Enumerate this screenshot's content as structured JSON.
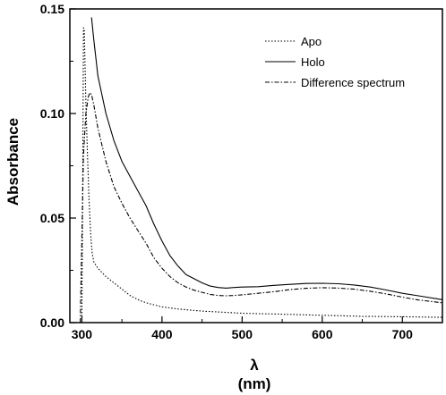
{
  "chart_data": {
    "type": "line",
    "title": "",
    "xlabel": "λ",
    "xlabel_unit": "(nm)",
    "ylabel": "Absorbance",
    "xlim": [
      285,
      750
    ],
    "ylim": [
      0,
      0.15
    ],
    "x_ticks": [
      300,
      400,
      500,
      600,
      700
    ],
    "y_ticks": [
      "0.00",
      "0.05",
      "0.10",
      "0.15"
    ],
    "grid": false,
    "legend_position": "top-right",
    "series": [
      {
        "name": "Apo",
        "style": "dotted",
        "color": "#000000",
        "points": [
          [
            300,
            0.0
          ],
          [
            301,
            0.06
          ],
          [
            302,
            0.141
          ],
          [
            303,
            0.14
          ],
          [
            305,
            0.105
          ],
          [
            307,
            0.08
          ],
          [
            309,
            0.058
          ],
          [
            311,
            0.042
          ],
          [
            313,
            0.033
          ],
          [
            315,
            0.029
          ],
          [
            320,
            0.026
          ],
          [
            330,
            0.022
          ],
          [
            340,
            0.019
          ],
          [
            350,
            0.016
          ],
          [
            360,
            0.013
          ],
          [
            370,
            0.011
          ],
          [
            380,
            0.0095
          ],
          [
            390,
            0.0085
          ],
          [
            400,
            0.0075
          ],
          [
            420,
            0.0065
          ],
          [
            450,
            0.0055
          ],
          [
            500,
            0.0045
          ],
          [
            550,
            0.004
          ],
          [
            600,
            0.0035
          ],
          [
            650,
            0.003
          ],
          [
            700,
            0.0028
          ],
          [
            750,
            0.0025
          ]
        ]
      },
      {
        "name": "Holo",
        "style": "solid",
        "color": "#000000",
        "points": [
          [
            312,
            0.146
          ],
          [
            315,
            0.135
          ],
          [
            320,
            0.118
          ],
          [
            330,
            0.1
          ],
          [
            340,
            0.087
          ],
          [
            350,
            0.077
          ],
          [
            360,
            0.07
          ],
          [
            370,
            0.063
          ],
          [
            380,
            0.056
          ],
          [
            390,
            0.047
          ],
          [
            400,
            0.039
          ],
          [
            410,
            0.032
          ],
          [
            420,
            0.027
          ],
          [
            430,
            0.023
          ],
          [
            440,
            0.021
          ],
          [
            450,
            0.019
          ],
          [
            460,
            0.0175
          ],
          [
            470,
            0.0168
          ],
          [
            480,
            0.0165
          ],
          [
            490,
            0.0168
          ],
          [
            500,
            0.017
          ],
          [
            520,
            0.0172
          ],
          [
            540,
            0.0178
          ],
          [
            560,
            0.0183
          ],
          [
            580,
            0.0187
          ],
          [
            600,
            0.0188
          ],
          [
            620,
            0.0186
          ],
          [
            640,
            0.018
          ],
          [
            660,
            0.017
          ],
          [
            680,
            0.0156
          ],
          [
            700,
            0.014
          ],
          [
            720,
            0.0128
          ],
          [
            750,
            0.011
          ]
        ]
      },
      {
        "name": "Difference spectrum",
        "style": "dashdot",
        "color": "#000000",
        "points": [
          [
            298,
            0.0
          ],
          [
            300,
            0.04
          ],
          [
            302,
            0.08
          ],
          [
            305,
            0.1
          ],
          [
            308,
            0.108
          ],
          [
            310,
            0.11
          ],
          [
            312,
            0.109
          ],
          [
            315,
            0.104
          ],
          [
            320,
            0.093
          ],
          [
            330,
            0.077
          ],
          [
            340,
            0.065
          ],
          [
            350,
            0.057
          ],
          [
            360,
            0.05
          ],
          [
            370,
            0.044
          ],
          [
            380,
            0.038
          ],
          [
            390,
            0.031
          ],
          [
            400,
            0.026
          ],
          [
            410,
            0.022
          ],
          [
            420,
            0.019
          ],
          [
            430,
            0.017
          ],
          [
            440,
            0.0155
          ],
          [
            450,
            0.0145
          ],
          [
            460,
            0.0135
          ],
          [
            470,
            0.013
          ],
          [
            480,
            0.0128
          ],
          [
            490,
            0.013
          ],
          [
            500,
            0.0133
          ],
          [
            520,
            0.014
          ],
          [
            540,
            0.0148
          ],
          [
            560,
            0.0158
          ],
          [
            580,
            0.0164
          ],
          [
            600,
            0.0167
          ],
          [
            620,
            0.0165
          ],
          [
            640,
            0.016
          ],
          [
            660,
            0.015
          ],
          [
            680,
            0.0137
          ],
          [
            700,
            0.0122
          ],
          [
            720,
            0.0108
          ],
          [
            750,
            0.0095
          ]
        ]
      }
    ]
  }
}
